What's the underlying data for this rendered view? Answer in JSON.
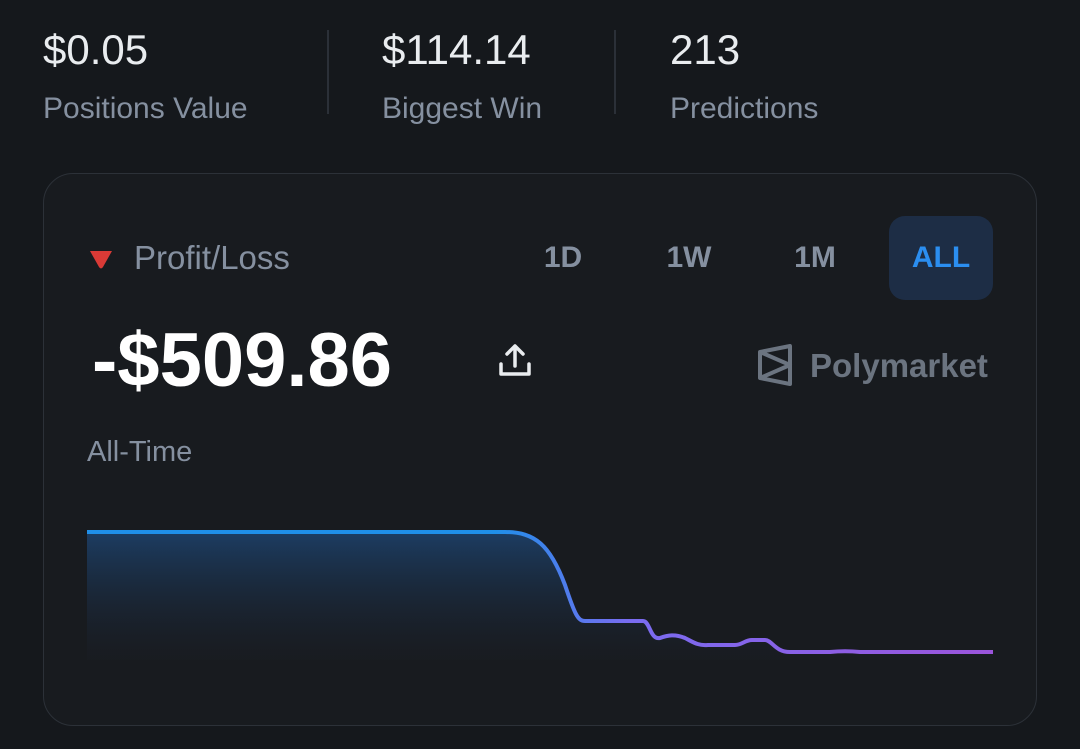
{
  "stats": [
    {
      "value": "$0.05",
      "label": "Positions Value"
    },
    {
      "value": "$114.14",
      "label": "Biggest Win"
    },
    {
      "value": "213",
      "label": "Predictions"
    }
  ],
  "card": {
    "title": "Profit/Loss",
    "tabs": [
      "1D",
      "1W",
      "1M",
      "ALL"
    ],
    "active_tab": "ALL",
    "value": "-$509.86",
    "period": "All-Time",
    "brand": "Polymarket"
  }
}
